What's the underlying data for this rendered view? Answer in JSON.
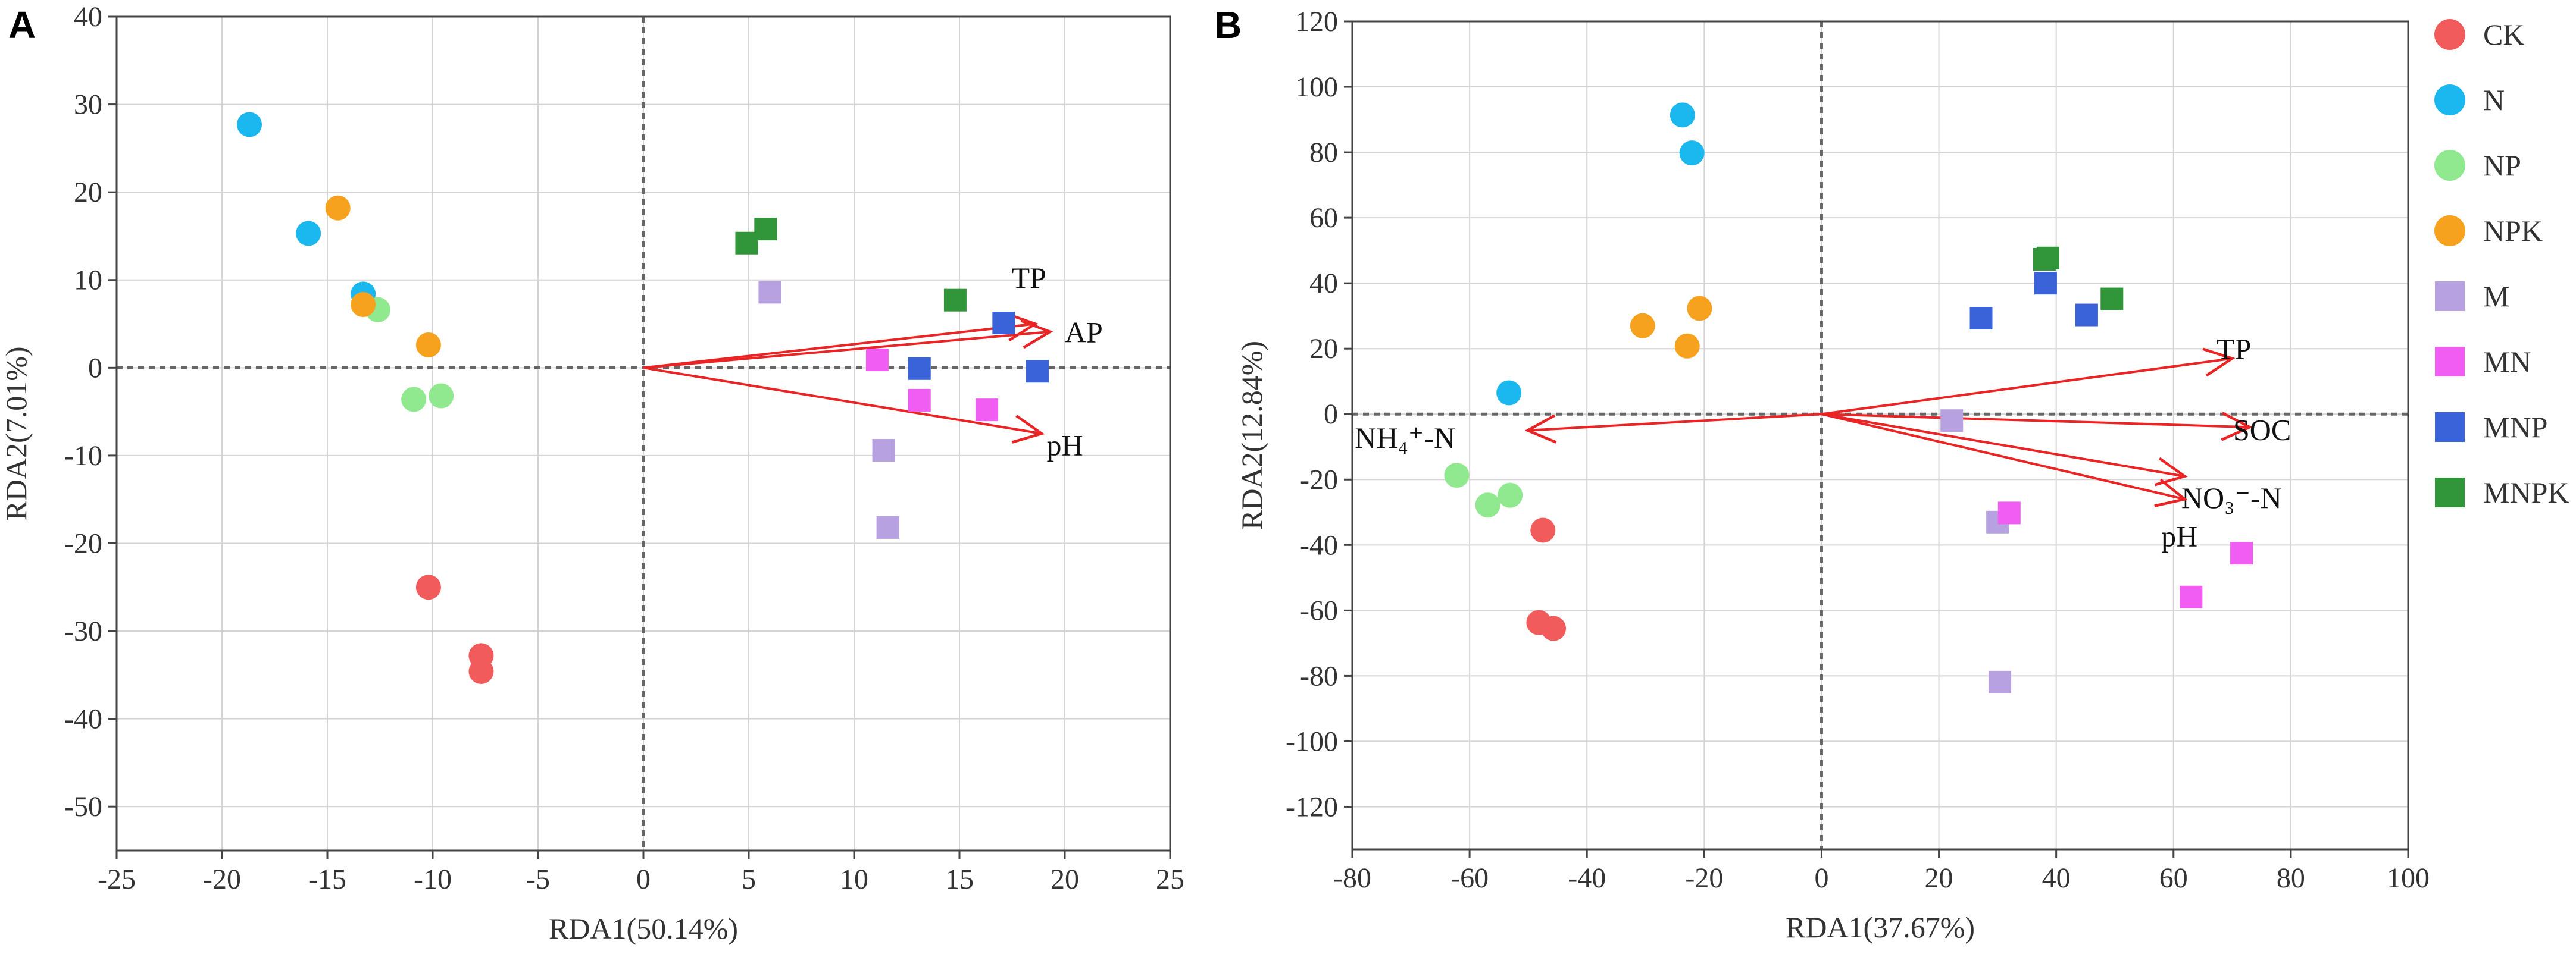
{
  "chart_data": [
    {
      "panel": "A",
      "type": "scatter",
      "xlabel": "RDA1(50.14%)",
      "ylabel": "RDA2(7.01%)",
      "xlim": [
        -25,
        25
      ],
      "ylim": [
        -55,
        40
      ],
      "xticks": [
        -25,
        -20,
        -15,
        -10,
        -5,
        0,
        5,
        10,
        15,
        20,
        25
      ],
      "yticks": [
        40,
        30,
        20,
        10,
        0,
        -10,
        -20,
        -30,
        -40,
        -50
      ],
      "grid": true,
      "reference_lines": "dashed at x=0 and y=0",
      "groups": [
        {
          "name": "CK",
          "shape": "circle",
          "points": [
            [
              -10.2,
              -25
            ],
            [
              -7.7,
              -32.8
            ],
            [
              -7.7,
              -34.6
            ]
          ]
        },
        {
          "name": "N",
          "shape": "circle",
          "points": [
            [
              -18.7,
              27.7
            ],
            [
              -15.9,
              15.3
            ],
            [
              -13.3,
              8.4
            ]
          ]
        },
        {
          "name": "NP",
          "shape": "circle",
          "points": [
            [
              -12.6,
              6.6
            ],
            [
              -10.9,
              -3.6
            ],
            [
              -9.6,
              -3.2
            ]
          ]
        },
        {
          "name": "NPK",
          "shape": "circle",
          "points": [
            [
              -14.5,
              18.2
            ],
            [
              -13.3,
              7.2
            ],
            [
              -10.2,
              2.6
            ]
          ]
        },
        {
          "name": "M",
          "shape": "square",
          "points": [
            [
              6.0,
              8.6
            ],
            [
              11.4,
              -9.4
            ],
            [
              11.6,
              -18.2
            ]
          ]
        },
        {
          "name": "MN",
          "shape": "square",
          "points": [
            [
              11.1,
              0.9
            ],
            [
              13.1,
              -3.7
            ],
            [
              16.3,
              -4.8
            ]
          ]
        },
        {
          "name": "MNP",
          "shape": "square",
          "points": [
            [
              13.1,
              -0.1
            ],
            [
              17.1,
              5.1
            ],
            [
              18.7,
              -0.4
            ]
          ]
        },
        {
          "name": "MNPK",
          "shape": "square",
          "points": [
            [
              4.9,
              14.2
            ],
            [
              5.8,
              15.8
            ],
            [
              14.8,
              7.7
            ]
          ]
        }
      ],
      "vectors": [
        {
          "label": "TP",
          "end": [
            18.6,
            5.0
          ],
          "label_pos": [
            18.3,
            10.2
          ]
        },
        {
          "label": "AP",
          "end": [
            19.3,
            4.1
          ],
          "label_pos": [
            20.9,
            4.0
          ]
        },
        {
          "label": "pH",
          "end": [
            18.9,
            -7.5
          ],
          "label_pos": [
            20.0,
            -8.9
          ]
        }
      ]
    },
    {
      "panel": "B",
      "type": "scatter",
      "xlabel": "RDA1(37.67%)",
      "ylabel": "RDA2(12.84%)",
      "xlim": [
        -80,
        100
      ],
      "ylim": [
        -133,
        120
      ],
      "xticks": [
        -80,
        -60,
        -40,
        -20,
        0,
        20,
        40,
        60,
        80,
        100
      ],
      "yticks": [
        120,
        100,
        80,
        60,
        40,
        20,
        0,
        -20,
        -40,
        -60,
        -80,
        -100,
        -120
      ],
      "grid": true,
      "reference_lines": "dashed at x=0 and y=0",
      "groups": [
        {
          "name": "CK",
          "shape": "circle",
          "points": [
            [
              -47.5,
              -35.5
            ],
            [
              -48.2,
              -63.7
            ],
            [
              -45.7,
              -65.5
            ]
          ]
        },
        {
          "name": "N",
          "shape": "circle",
          "points": [
            [
              -23.7,
              91.4
            ],
            [
              -22.1,
              79.8
            ],
            [
              -53.3,
              6.5
            ]
          ]
        },
        {
          "name": "NP",
          "shape": "circle",
          "points": [
            [
              -62.2,
              -18.7
            ],
            [
              -56.9,
              -27.8
            ],
            [
              -53.1,
              -24.8
            ]
          ]
        },
        {
          "name": "NPK",
          "shape": "circle",
          "points": [
            [
              -30.5,
              27.0
            ],
            [
              -22.9,
              20.8
            ],
            [
              -20.8,
              32.3
            ]
          ]
        },
        {
          "name": "M",
          "shape": "square",
          "points": [
            [
              22.2,
              -2.0
            ],
            [
              30.0,
              -33.0
            ],
            [
              30.4,
              -81.9
            ]
          ]
        },
        {
          "name": "MN",
          "shape": "square",
          "points": [
            [
              32.0,
              -30.2
            ],
            [
              63.0,
              -55.9
            ],
            [
              71.6,
              -42.5
            ]
          ]
        },
        {
          "name": "MNP",
          "shape": "square",
          "points": [
            [
              27.2,
              29.3
            ],
            [
              38.2,
              40.0
            ],
            [
              45.2,
              30.3
            ]
          ]
        },
        {
          "name": "MNPK",
          "shape": "square",
          "points": [
            [
              38.0,
              47.3
            ],
            [
              38.6,
              47.7
            ],
            [
              49.5,
              35.2
            ]
          ]
        }
      ],
      "vectors": [
        {
          "label": "TP",
          "end": [
            70.0,
            17.0
          ],
          "label_pos": [
            70.3,
            19.8
          ]
        },
        {
          "label": "SOC",
          "end": [
            73.0,
            -4.0
          ],
          "label_pos": [
            75.1,
            -5.0
          ]
        },
        {
          "label": "NO₃⁻-N",
          "end": [
            61.9,
            -19.0
          ],
          "label_pos": [
            69.9,
            -25.8
          ]
        },
        {
          "label": "pH",
          "end": [
            61.9,
            -26.0
          ],
          "label_pos": [
            61.0,
            -37.5
          ]
        },
        {
          "label": "NH₄⁺-N",
          "end": [
            -50.1,
            -5.0
          ],
          "label_pos": [
            -71.0,
            -7.4
          ]
        }
      ]
    }
  ],
  "panel_labels": [
    "A",
    "B"
  ],
  "legend": {
    "placement": "right",
    "entries": [
      {
        "name": "CK",
        "shape": "circle",
        "color": "#f15b5b"
      },
      {
        "name": "N",
        "shape": "circle",
        "color": "#1ab8ef"
      },
      {
        "name": "NP",
        "shape": "circle",
        "color": "#90e88f"
      },
      {
        "name": "NPK",
        "shape": "circle",
        "color": "#f6a21e"
      },
      {
        "name": "M",
        "shape": "square",
        "color": "#b8a1e1"
      },
      {
        "name": "MN",
        "shape": "square",
        "color": "#f15cf2"
      },
      {
        "name": "MNP",
        "shape": "square",
        "color": "#3a63d9"
      },
      {
        "name": "MNPK",
        "shape": "square",
        "color": "#31963a"
      }
    ]
  },
  "colors": {
    "arrow": "#ea2424",
    "grid": "#d4d4d4",
    "axis": "#444444",
    "refline": "#666666"
  }
}
